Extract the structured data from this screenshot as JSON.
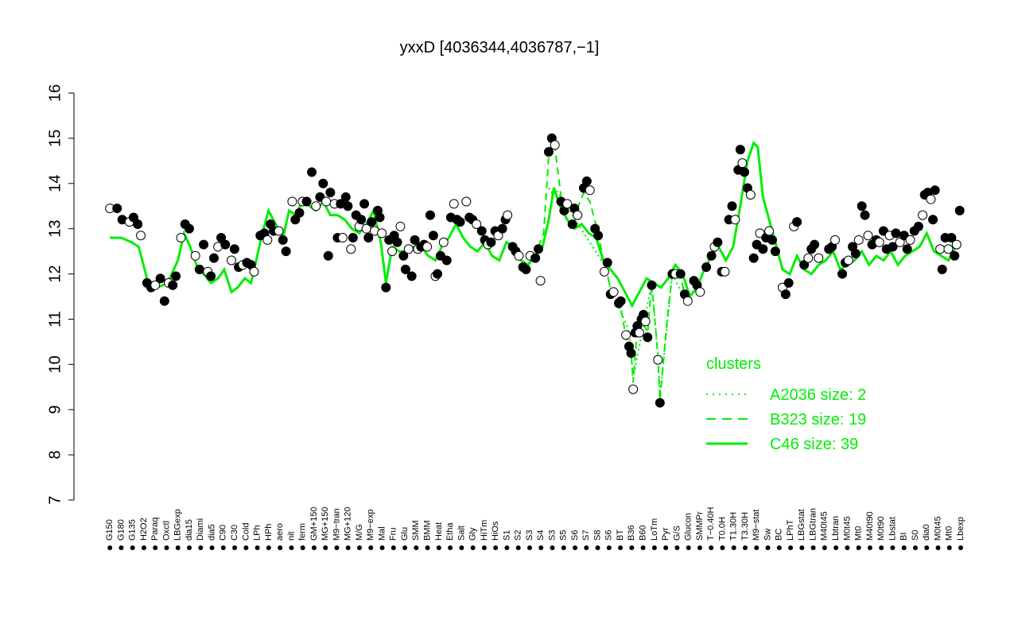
{
  "chart_data": {
    "type": "line",
    "title": "yxxD [4036344,4036787,−1]",
    "xlabel": "",
    "ylabel": "",
    "ylim": [
      7,
      16
    ],
    "yticks": [
      7,
      8,
      9,
      10,
      11,
      12,
      13,
      14,
      15,
      16
    ],
    "grid": false,
    "x_tick_labels": [
      "G150",
      "G180",
      "G135",
      "H2O2",
      "Paraq",
      "Oxctl",
      "LBGexp",
      "dia15",
      "Diami",
      "dia5",
      "C90",
      "C30",
      "Cold",
      "LPh",
      "HPh",
      "aero",
      "nit",
      "ferm",
      "GM+150",
      "MG+150",
      "M9−tran",
      "MG+120",
      "M/G",
      "M9−exp",
      "Mal",
      "Fru",
      "Glu",
      "SMM",
      "BMM",
      "Heat",
      "Etha",
      "Salt",
      "Gly",
      "HiTm",
      "HiOs",
      "S1",
      "S2",
      "S3",
      "S4",
      "S3",
      "S5",
      "S6",
      "S7",
      "S8",
      "S6",
      "BT",
      "B36",
      "B60",
      "LoTm",
      "Pyr",
      "G/S",
      "Glucon",
      "SMMPr",
      "T−0.40H",
      "T0.0H",
      "T1.30H",
      "T3.30H",
      "M9−stat",
      "Sw",
      "BC",
      "LPhT",
      "LBGstat",
      "LBGtran",
      "M40t45",
      "Lbtran",
      "M0t45",
      "Mt0",
      "M40t90",
      "M0t90",
      "Lbstat",
      "BI",
      "S0",
      "dia0",
      "M0t45",
      "Mt0",
      "Lbexp"
    ],
    "points": [
      [
        0.4,
        13.45
      ],
      [
        1.1,
        13.45
      ],
      [
        1.6,
        13.2
      ],
      [
        2.3,
        13.15
      ],
      [
        2.7,
        13.25
      ],
      [
        3.1,
        13.1
      ],
      [
        3.4,
        12.85
      ],
      [
        4.0,
        11.8
      ],
      [
        4.4,
        11.7
      ],
      [
        4.8,
        11.75
      ],
      [
        5.3,
        11.9
      ],
      [
        5.7,
        11.4
      ],
      [
        6.1,
        11.8
      ],
      [
        6.5,
        11.75
      ],
      [
        6.8,
        11.95
      ],
      [
        7.3,
        12.8
      ],
      [
        7.7,
        13.1
      ],
      [
        8.1,
        13.0
      ],
      [
        8.7,
        12.4
      ],
      [
        9.1,
        12.1
      ],
      [
        9.5,
        12.65
      ],
      [
        9.9,
        12.05
      ],
      [
        10.2,
        11.95
      ],
      [
        10.5,
        12.35
      ],
      [
        10.9,
        12.6
      ],
      [
        11.2,
        12.8
      ],
      [
        11.6,
        12.65
      ],
      [
        12.2,
        12.3
      ],
      [
        12.5,
        12.55
      ],
      [
        12.9,
        12.15
      ],
      [
        13.3,
        12.2
      ],
      [
        13.7,
        12.25
      ],
      [
        14.1,
        12.2
      ],
      [
        14.4,
        12.05
      ],
      [
        15.0,
        12.85
      ],
      [
        15.4,
        12.9
      ],
      [
        15.7,
        12.75
      ],
      [
        16.0,
        13.1
      ],
      [
        16.3,
        12.95
      ],
      [
        16.8,
        12.95
      ],
      [
        17.2,
        12.75
      ],
      [
        17.5,
        12.5
      ],
      [
        18.1,
        13.6
      ],
      [
        18.4,
        13.2
      ],
      [
        18.8,
        13.35
      ],
      [
        19.1,
        13.6
      ],
      [
        19.5,
        13.6
      ],
      [
        20.0,
        14.25
      ],
      [
        20.4,
        13.5
      ],
      [
        20.8,
        13.7
      ],
      [
        21.1,
        14.0
      ],
      [
        21.4,
        13.6
      ],
      [
        21.6,
        12.4
      ],
      [
        21.8,
        13.8
      ],
      [
        22.2,
        13.55
      ],
      [
        22.5,
        12.8
      ],
      [
        22.8,
        13.55
      ],
      [
        23.0,
        12.8
      ],
      [
        23.3,
        13.7
      ],
      [
        23.5,
        13.5
      ],
      [
        23.8,
        12.55
      ],
      [
        24.0,
        12.8
      ],
      [
        24.3,
        13.3
      ],
      [
        24.6,
        13.05
      ],
      [
        24.8,
        13.2
      ],
      [
        25.1,
        13.55
      ],
      [
        25.3,
        13.0
      ],
      [
        25.5,
        12.8
      ],
      [
        25.8,
        13.15
      ],
      [
        26.1,
        12.95
      ],
      [
        26.4,
        13.4
      ],
      [
        26.6,
        13.25
      ],
      [
        26.8,
        12.9
      ],
      [
        27.2,
        11.7
      ],
      [
        27.5,
        12.75
      ],
      [
        27.8,
        12.5
      ],
      [
        28.0,
        12.85
      ],
      [
        28.3,
        12.7
      ],
      [
        28.6,
        13.05
      ],
      [
        28.9,
        12.4
      ],
      [
        29.1,
        12.1
      ],
      [
        29.4,
        12.55
      ],
      [
        29.7,
        11.95
      ],
      [
        30.0,
        12.75
      ],
      [
        30.3,
        12.55
      ],
      [
        30.6,
        12.6
      ],
      [
        30.9,
        12.65
      ],
      [
        31.2,
        12.6
      ],
      [
        31.5,
        13.3
      ],
      [
        31.8,
        12.85
      ],
      [
        32.0,
        11.95
      ],
      [
        32.2,
        12.0
      ],
      [
        32.5,
        12.4
      ],
      [
        32.8,
        12.7
      ],
      [
        33.1,
        12.3
      ],
      [
        33.5,
        13.25
      ],
      [
        33.8,
        13.55
      ],
      [
        34.1,
        13.2
      ],
      [
        34.4,
        13.15
      ],
      [
        35.0,
        13.6
      ],
      [
        35.3,
        13.25
      ],
      [
        35.6,
        13.2
      ],
      [
        36.0,
        13.1
      ],
      [
        36.5,
        12.95
      ],
      [
        36.8,
        12.75
      ],
      [
        37.1,
        12.65
      ],
      [
        37.4,
        12.7
      ],
      [
        37.8,
        12.95
      ],
      [
        38.1,
        12.85
      ],
      [
        38.5,
        13.0
      ],
      [
        38.8,
        13.2
      ],
      [
        39.0,
        13.3
      ],
      [
        39.5,
        12.6
      ],
      [
        39.8,
        12.5
      ],
      [
        40.1,
        12.4
      ],
      [
        40.5,
        12.15
      ],
      [
        40.8,
        12.1
      ],
      [
        41.2,
        12.4
      ],
      [
        41.7,
        12.35
      ],
      [
        42.0,
        12.55
      ],
      [
        42.2,
        11.85
      ],
      [
        43.0,
        14.7
      ],
      [
        43.3,
        15.0
      ],
      [
        43.6,
        14.85
      ],
      [
        44.2,
        13.6
      ],
      [
        44.5,
        13.4
      ],
      [
        44.8,
        13.55
      ],
      [
        45.3,
        13.1
      ],
      [
        45.5,
        13.45
      ],
      [
        45.8,
        13.3
      ],
      [
        46.4,
        13.9
      ],
      [
        46.7,
        14.05
      ],
      [
        47.0,
        13.85
      ],
      [
        47.5,
        13.0
      ],
      [
        47.8,
        12.85
      ],
      [
        48.4,
        12.05
      ],
      [
        48.7,
        12.25
      ],
      [
        49.0,
        11.55
      ],
      [
        49.3,
        11.6
      ],
      [
        49.8,
        11.35
      ],
      [
        50.0,
        11.4
      ],
      [
        50.5,
        10.65
      ],
      [
        50.8,
        10.4
      ],
      [
        51.0,
        10.25
      ],
      [
        51.2,
        9.45
      ],
      [
        51.4,
        10.7
      ],
      [
        51.6,
        10.85
      ],
      [
        51.8,
        10.7
      ],
      [
        52.0,
        11.0
      ],
      [
        52.2,
        11.1
      ],
      [
        52.4,
        10.95
      ],
      [
        52.6,
        10.6
      ],
      [
        53.0,
        11.75
      ],
      [
        53.6,
        10.1
      ],
      [
        53.8,
        9.15
      ],
      [
        55.0,
        12.0
      ],
      [
        55.3,
        12.0
      ],
      [
        55.8,
        12.0
      ],
      [
        56.2,
        11.55
      ],
      [
        56.5,
        11.4
      ],
      [
        57.1,
        11.85
      ],
      [
        57.4,
        11.75
      ],
      [
        57.7,
        11.6
      ],
      [
        58.3,
        12.15
      ],
      [
        58.8,
        12.4
      ],
      [
        59.1,
        12.6
      ],
      [
        59.4,
        12.7
      ],
      [
        59.8,
        12.05
      ],
      [
        60.1,
        12.05
      ],
      [
        60.5,
        13.2
      ],
      [
        60.8,
        13.5
      ],
      [
        61.1,
        13.2
      ],
      [
        61.4,
        14.3
      ],
      [
        61.6,
        14.75
      ],
      [
        61.8,
        14.45
      ],
      [
        62.0,
        14.25
      ],
      [
        62.3,
        13.9
      ],
      [
        62.6,
        13.75
      ],
      [
        62.9,
        12.35
      ],
      [
        63.2,
        12.65
      ],
      [
        63.5,
        12.9
      ],
      [
        63.8,
        12.55
      ],
      [
        64.1,
        12.8
      ],
      [
        64.4,
        12.95
      ],
      [
        64.7,
        12.75
      ],
      [
        65.0,
        12.5
      ],
      [
        65.7,
        11.7
      ],
      [
        66.0,
        11.55
      ],
      [
        66.3,
        11.8
      ],
      [
        66.8,
        13.05
      ],
      [
        67.1,
        13.15
      ],
      [
        67.8,
        12.2
      ],
      [
        68.2,
        12.35
      ],
      [
        68.5,
        12.55
      ],
      [
        68.8,
        12.65
      ],
      [
        69.2,
        12.35
      ],
      [
        70.2,
        12.55
      ],
      [
        70.5,
        12.6
      ],
      [
        70.8,
        12.75
      ],
      [
        71.5,
        12.0
      ],
      [
        71.8,
        12.25
      ],
      [
        72.1,
        12.3
      ],
      [
        72.5,
        12.6
      ],
      [
        72.8,
        12.45
      ],
      [
        73.1,
        12.75
      ],
      [
        73.4,
        13.5
      ],
      [
        73.7,
        13.3
      ],
      [
        74.0,
        12.85
      ],
      [
        74.4,
        12.65
      ],
      [
        74.8,
        12.75
      ],
      [
        75.1,
        12.7
      ],
      [
        75.5,
        12.95
      ],
      [
        75.8,
        12.55
      ],
      [
        76.1,
        12.85
      ],
      [
        76.4,
        12.6
      ],
      [
        76.7,
        12.9
      ],
      [
        77.1,
        12.7
      ],
      [
        77.5,
        12.85
      ],
      [
        77.8,
        12.55
      ],
      [
        78.1,
        12.75
      ],
      [
        78.5,
        12.95
      ],
      [
        78.9,
        13.05
      ],
      [
        79.3,
        13.3
      ],
      [
        79.5,
        13.75
      ],
      [
        79.8,
        13.8
      ],
      [
        80.1,
        13.65
      ],
      [
        80.3,
        13.2
      ],
      [
        80.5,
        13.85
      ],
      [
        81.0,
        12.55
      ],
      [
        81.2,
        12.1
      ],
      [
        81.5,
        12.8
      ],
      [
        81.8,
        12.55
      ],
      [
        82.1,
        12.8
      ],
      [
        82.4,
        12.4
      ],
      [
        82.6,
        12.65
      ],
      [
        82.9,
        13.4
      ]
    ],
    "series": [
      {
        "name": "A2036 size: 2",
        "style": "dotted",
        "x": [
          43.0,
          43.3,
          43.6,
          48.4,
          48.7,
          49.0,
          50.5,
          50.8,
          51.2,
          53.0,
          53.6,
          53.8,
          55.0,
          56.5
        ],
        "y": [
          13.9,
          13.8,
          13.9,
          12.2,
          12.0,
          11.7,
          10.9,
          10.7,
          9.7,
          11.8,
          10.2,
          9.3,
          12.0,
          11.3
        ]
      },
      {
        "name": "B323 size: 19",
        "style": "dashed",
        "x": [
          42.0,
          42.5,
          43.0,
          43.3,
          43.6,
          44.2,
          44.8,
          45.5,
          46.4,
          47.0,
          47.8,
          48.4,
          49.0,
          49.8,
          50.5,
          51.0,
          51.2,
          51.6,
          52.0,
          52.6,
          53.0,
          53.6,
          53.8,
          54.5,
          55.0,
          55.8,
          56.2,
          56.5
        ],
        "y": [
          12.6,
          12.9,
          14.6,
          14.9,
          14.8,
          13.7,
          13.6,
          13.3,
          13.8,
          13.6,
          12.9,
          12.2,
          11.7,
          11.5,
          10.6,
          10.3,
          9.6,
          10.8,
          11.0,
          10.7,
          11.8,
          10.2,
          9.2,
          11.0,
          12.0,
          12.0,
          11.5,
          11.3
        ]
      },
      {
        "name": "C46 size: 39",
        "style": "solid",
        "x": [
          0.4,
          1.5,
          2.5,
          3.2,
          4.0,
          5.0,
          6.0,
          7.0,
          7.6,
          8.2,
          8.8,
          9.5,
          10.2,
          10.9,
          11.5,
          12.2,
          12.8,
          13.5,
          14.1,
          14.5,
          15.2,
          15.8,
          16.5,
          17.2,
          17.8,
          18.4,
          19.1,
          19.8,
          20.4,
          21.1,
          21.8,
          22.5,
          23.2,
          23.9,
          24.6,
          25.3,
          26.0,
          26.7,
          27.2,
          27.8,
          28.5,
          29.2,
          29.9,
          30.6,
          31.3,
          32.0,
          32.6,
          33.3,
          34.0,
          34.7,
          35.4,
          36.1,
          36.8,
          37.5,
          38.2,
          38.9,
          39.6,
          40.3,
          41.0,
          41.7,
          42.4,
          43.0,
          43.5,
          44.1,
          44.8,
          45.5,
          46.2,
          46.9,
          47.6,
          48.3,
          49.0,
          49.7,
          50.4,
          51.1,
          51.8,
          52.5,
          53.2,
          53.9,
          54.6,
          55.3,
          56.0,
          56.7,
          57.4,
          58.1,
          58.8,
          59.5,
          60.2,
          60.9,
          61.6,
          62.3,
          62.9,
          63.3,
          63.8,
          64.4,
          65.0,
          65.7,
          66.4,
          67.1,
          67.8,
          68.5,
          69.2,
          69.9,
          70.6,
          71.3,
          72.0,
          72.7,
          73.4,
          74.1,
          74.8,
          75.5,
          76.2,
          76.9,
          77.6,
          78.3,
          79.0,
          79.7,
          80.4,
          81.1,
          81.8,
          82.5,
          82.9
        ],
        "y": [
          12.8,
          12.8,
          12.7,
          12.6,
          11.9,
          11.7,
          11.8,
          12.3,
          12.9,
          12.6,
          12.2,
          12.0,
          11.8,
          11.9,
          12.1,
          11.6,
          11.7,
          11.9,
          11.8,
          12.2,
          12.9,
          13.4,
          13.1,
          12.8,
          13.4,
          13.3,
          13.6,
          13.5,
          13.4,
          13.6,
          13.3,
          13.3,
          13.2,
          13.0,
          12.9,
          13.1,
          13.4,
          12.7,
          11.8,
          12.6,
          12.5,
          12.5,
          12.6,
          12.6,
          12.4,
          12.3,
          12.6,
          12.8,
          13.1,
          12.8,
          12.6,
          12.5,
          12.7,
          12.4,
          12.3,
          12.7,
          12.6,
          12.3,
          12.2,
          12.4,
          12.6,
          13.2,
          13.9,
          13.5,
          13.2,
          13.0,
          13.1,
          12.9,
          12.8,
          12.3,
          12.1,
          11.9,
          11.6,
          11.3,
          11.6,
          11.9,
          11.8,
          11.7,
          11.9,
          12.2,
          12.0,
          11.5,
          11.7,
          12.1,
          12.4,
          12.6,
          12.3,
          12.6,
          13.5,
          14.5,
          14.9,
          14.8,
          13.7,
          13.2,
          12.7,
          12.1,
          12.0,
          12.4,
          12.1,
          12.0,
          12.2,
          12.3,
          12.5,
          12.1,
          12.2,
          12.3,
          12.5,
          12.2,
          12.4,
          12.3,
          12.5,
          12.2,
          12.4,
          12.5,
          12.6,
          12.9,
          12.5,
          12.4,
          12.3,
          12.6,
          12.7
        ]
      }
    ],
    "legend": {
      "title": "clusters",
      "placement": "right",
      "entries": [
        "A2036 size: 2",
        "B323 size: 19",
        "C46 size: 39"
      ]
    }
  },
  "colors": {
    "series_line": "#00ee00",
    "axis": "#000000",
    "marker_fill_filled": "#000000",
    "marker_fill_open": "#ffffff"
  }
}
